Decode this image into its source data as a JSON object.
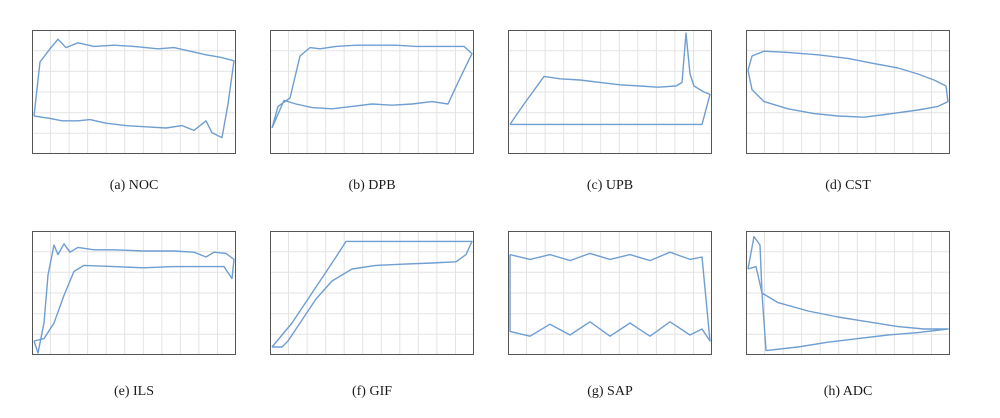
{
  "figure": {
    "captions": [
      "(a) NOC",
      "(b) DPB",
      "(c) UPB",
      "(d) CST",
      "(e) ILS",
      "(f) GIF",
      "(g) SAP",
      "(h) ADC"
    ]
  },
  "chart_data": [
    {
      "type": "line",
      "title": "(a) NOC",
      "grid": true,
      "xlim": [
        0,
        1
      ],
      "ylim": [
        0,
        1
      ],
      "series": [
        {
          "shape": "closed",
          "points": [
            [
              0.0,
              0.3
            ],
            [
              0.03,
              0.75
            ],
            [
              0.08,
              0.86
            ],
            [
              0.12,
              0.94
            ],
            [
              0.16,
              0.87
            ],
            [
              0.22,
              0.91
            ],
            [
              0.3,
              0.88
            ],
            [
              0.4,
              0.89
            ],
            [
              0.5,
              0.88
            ],
            [
              0.62,
              0.86
            ],
            [
              0.7,
              0.87
            ],
            [
              0.78,
              0.84
            ],
            [
              0.86,
              0.81
            ],
            [
              0.93,
              0.79
            ],
            [
              1.0,
              0.76
            ],
            [
              0.97,
              0.4
            ],
            [
              0.94,
              0.12
            ],
            [
              0.89,
              0.16
            ],
            [
              0.86,
              0.26
            ],
            [
              0.8,
              0.18
            ],
            [
              0.74,
              0.22
            ],
            [
              0.66,
              0.2
            ],
            [
              0.56,
              0.21
            ],
            [
              0.46,
              0.22
            ],
            [
              0.36,
              0.24
            ],
            [
              0.28,
              0.27
            ],
            [
              0.22,
              0.26
            ],
            [
              0.14,
              0.26
            ],
            [
              0.08,
              0.28
            ],
            [
              0.0,
              0.3
            ]
          ]
        }
      ]
    },
    {
      "type": "line",
      "title": "(b) DPB",
      "grid": true,
      "xlim": [
        0,
        1
      ],
      "ylim": [
        0,
        1
      ],
      "series": [
        {
          "shape": "closed",
          "points": [
            [
              0.0,
              0.2
            ],
            [
              0.03,
              0.38
            ],
            [
              0.09,
              0.45
            ],
            [
              0.14,
              0.8
            ],
            [
              0.19,
              0.87
            ],
            [
              0.24,
              0.86
            ],
            [
              0.32,
              0.88
            ],
            [
              0.42,
              0.89
            ],
            [
              0.52,
              0.89
            ],
            [
              0.62,
              0.89
            ],
            [
              0.72,
              0.88
            ],
            [
              0.82,
              0.88
            ],
            [
              0.9,
              0.88
            ],
            [
              0.96,
              0.88
            ],
            [
              1.0,
              0.82
            ],
            [
              0.93,
              0.58
            ],
            [
              0.88,
              0.4
            ],
            [
              0.8,
              0.42
            ],
            [
              0.7,
              0.4
            ],
            [
              0.6,
              0.39
            ],
            [
              0.5,
              0.4
            ],
            [
              0.4,
              0.38
            ],
            [
              0.3,
              0.36
            ],
            [
              0.2,
              0.37
            ],
            [
              0.12,
              0.4
            ],
            [
              0.06,
              0.43
            ],
            [
              0.0,
              0.2
            ]
          ]
        }
      ]
    },
    {
      "type": "line",
      "title": "(c) UPB",
      "grid": true,
      "xlim": [
        0,
        1
      ],
      "ylim": [
        0,
        1
      ],
      "series": [
        {
          "shape": "closed",
          "points": [
            [
              0.0,
              0.23
            ],
            [
              0.07,
              0.4
            ],
            [
              0.14,
              0.56
            ],
            [
              0.17,
              0.63
            ],
            [
              0.25,
              0.61
            ],
            [
              0.35,
              0.6
            ],
            [
              0.45,
              0.58
            ],
            [
              0.55,
              0.56
            ],
            [
              0.65,
              0.55
            ],
            [
              0.74,
              0.54
            ],
            [
              0.83,
              0.55
            ],
            [
              0.86,
              0.58
            ],
            [
              0.88,
              0.99
            ],
            [
              0.9,
              0.65
            ],
            [
              0.92,
              0.55
            ],
            [
              0.97,
              0.5
            ],
            [
              1.0,
              0.48
            ],
            [
              0.96,
              0.23
            ],
            [
              0.0,
              0.23
            ]
          ]
        }
      ]
    },
    {
      "type": "line",
      "title": "(d) CST",
      "grid": true,
      "xlim": [
        0,
        1
      ],
      "ylim": [
        0,
        1
      ],
      "series": [
        {
          "shape": "closed",
          "points": [
            [
              0.0,
              0.68
            ],
            [
              0.02,
              0.8
            ],
            [
              0.08,
              0.84
            ],
            [
              0.2,
              0.83
            ],
            [
              0.35,
              0.81
            ],
            [
              0.5,
              0.78
            ],
            [
              0.62,
              0.74
            ],
            [
              0.75,
              0.7
            ],
            [
              0.85,
              0.65
            ],
            [
              0.93,
              0.6
            ],
            [
              0.99,
              0.55
            ],
            [
              1.0,
              0.42
            ],
            [
              0.95,
              0.38
            ],
            [
              0.85,
              0.35
            ],
            [
              0.72,
              0.32
            ],
            [
              0.58,
              0.29
            ],
            [
              0.45,
              0.3
            ],
            [
              0.33,
              0.32
            ],
            [
              0.2,
              0.36
            ],
            [
              0.08,
              0.42
            ],
            [
              0.02,
              0.52
            ],
            [
              0.0,
              0.68
            ]
          ]
        }
      ]
    },
    {
      "type": "line",
      "title": "(e) ILS",
      "grid": true,
      "xlim": [
        0,
        1
      ],
      "ylim": [
        0,
        1
      ],
      "series": [
        {
          "shape": "closed",
          "points": [
            [
              0.0,
              0.1
            ],
            [
              0.02,
              0.0
            ],
            [
              0.05,
              0.25
            ],
            [
              0.07,
              0.65
            ],
            [
              0.1,
              0.9
            ],
            [
              0.12,
              0.82
            ],
            [
              0.15,
              0.91
            ],
            [
              0.18,
              0.84
            ],
            [
              0.22,
              0.88
            ],
            [
              0.3,
              0.86
            ],
            [
              0.4,
              0.86
            ],
            [
              0.55,
              0.85
            ],
            [
              0.7,
              0.85
            ],
            [
              0.8,
              0.84
            ],
            [
              0.86,
              0.8
            ],
            [
              0.9,
              0.84
            ],
            [
              0.96,
              0.83
            ],
            [
              1.0,
              0.78
            ],
            [
              0.99,
              0.62
            ],
            [
              0.95,
              0.72
            ],
            [
              0.85,
              0.72
            ],
            [
              0.7,
              0.72
            ],
            [
              0.55,
              0.71
            ],
            [
              0.4,
              0.72
            ],
            [
              0.25,
              0.73
            ],
            [
              0.2,
              0.68
            ],
            [
              0.15,
              0.48
            ],
            [
              0.1,
              0.25
            ],
            [
              0.05,
              0.12
            ],
            [
              0.0,
              0.1
            ]
          ]
        }
      ]
    },
    {
      "type": "line",
      "title": "(f) GIF",
      "grid": true,
      "xlim": [
        0,
        1
      ],
      "ylim": [
        0,
        1
      ],
      "series": [
        {
          "shape": "closed",
          "points": [
            [
              0.0,
              0.05
            ],
            [
              0.1,
              0.25
            ],
            [
              0.22,
              0.55
            ],
            [
              0.32,
              0.8
            ],
            [
              0.37,
              0.93
            ],
            [
              0.55,
              0.93
            ],
            [
              0.75,
              0.93
            ],
            [
              0.92,
              0.93
            ],
            [
              1.0,
              0.93
            ],
            [
              0.97,
              0.82
            ],
            [
              0.92,
              0.76
            ],
            [
              0.8,
              0.75
            ],
            [
              0.65,
              0.74
            ],
            [
              0.52,
              0.73
            ],
            [
              0.4,
              0.7
            ],
            [
              0.3,
              0.6
            ],
            [
              0.22,
              0.45
            ],
            [
              0.14,
              0.25
            ],
            [
              0.08,
              0.1
            ],
            [
              0.05,
              0.05
            ],
            [
              0.0,
              0.05
            ]
          ]
        }
      ]
    },
    {
      "type": "line",
      "title": "(g) SAP",
      "grid": true,
      "xlim": [
        0,
        1
      ],
      "ylim": [
        0,
        1
      ],
      "series": [
        {
          "shape": "closed",
          "points": [
            [
              0.0,
              0.82
            ],
            [
              0.1,
              0.78
            ],
            [
              0.2,
              0.82
            ],
            [
              0.3,
              0.77
            ],
            [
              0.4,
              0.83
            ],
            [
              0.5,
              0.78
            ],
            [
              0.6,
              0.82
            ],
            [
              0.7,
              0.77
            ],
            [
              0.8,
              0.84
            ],
            [
              0.9,
              0.78
            ],
            [
              0.96,
              0.8
            ],
            [
              1.0,
              0.1
            ],
            [
              0.96,
              0.2
            ],
            [
              0.9,
              0.15
            ],
            [
              0.8,
              0.26
            ],
            [
              0.7,
              0.14
            ],
            [
              0.6,
              0.25
            ],
            [
              0.5,
              0.14
            ],
            [
              0.4,
              0.26
            ],
            [
              0.3,
              0.15
            ],
            [
              0.2,
              0.24
            ],
            [
              0.1,
              0.14
            ],
            [
              0.0,
              0.18
            ],
            [
              0.0,
              0.82
            ]
          ]
        }
      ]
    },
    {
      "type": "line",
      "title": "(h) ADC",
      "grid": true,
      "xlim": [
        0,
        1
      ],
      "ylim": [
        0,
        1
      ],
      "series": [
        {
          "shape": "closed",
          "points": [
            [
              0.0,
              0.7
            ],
            [
              0.03,
              0.97
            ],
            [
              0.06,
              0.9
            ],
            [
              0.07,
              0.5
            ],
            [
              0.15,
              0.42
            ],
            [
              0.3,
              0.35
            ],
            [
              0.45,
              0.3
            ],
            [
              0.6,
              0.26
            ],
            [
              0.75,
              0.22
            ],
            [
              0.88,
              0.2
            ],
            [
              1.0,
              0.2
            ],
            [
              0.85,
              0.17
            ],
            [
              0.7,
              0.15
            ],
            [
              0.55,
              0.12
            ],
            [
              0.4,
              0.09
            ],
            [
              0.25,
              0.05
            ],
            [
              0.09,
              0.02
            ],
            [
              0.07,
              0.5
            ],
            [
              0.04,
              0.72
            ],
            [
              0.0,
              0.7
            ]
          ]
        }
      ]
    }
  ]
}
